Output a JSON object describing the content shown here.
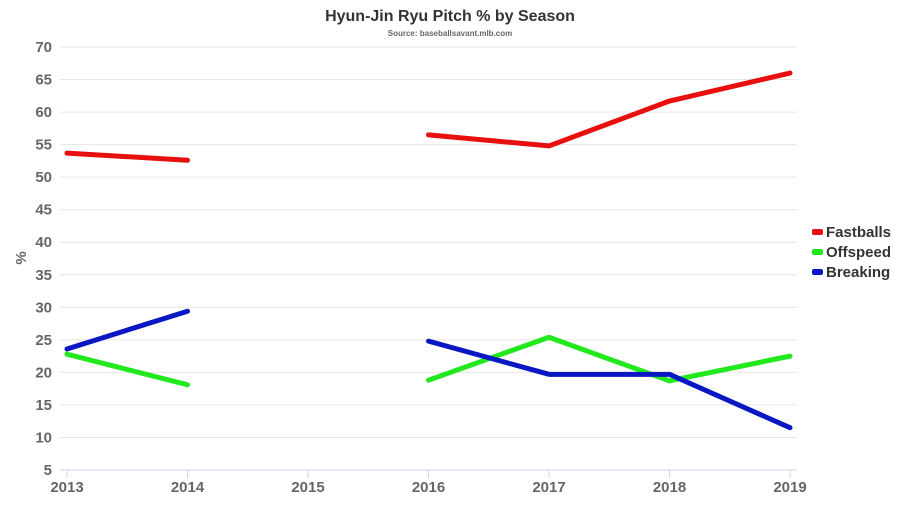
{
  "chart_data": {
    "type": "line",
    "title": "Hyun-Jin Ryu Pitch % by Season",
    "subtitle": "Source: baseballsavant.mlb.com",
    "xlabel": "",
    "ylabel": "%",
    "x": [
      "2013",
      "2014",
      "2015",
      "2016",
      "2017",
      "2018",
      "2019"
    ],
    "ylim": [
      5,
      70
    ],
    "yticks": [
      5,
      10,
      15,
      20,
      25,
      30,
      35,
      40,
      45,
      50,
      55,
      60,
      65,
      70
    ],
    "grid": true,
    "legend": "right",
    "series": [
      {
        "name": "Fastballs",
        "color": "#e8100f",
        "values": [
          53.7,
          52.6,
          null,
          56.5,
          54.8,
          61.7,
          66.0
        ]
      },
      {
        "name": "Offspeed",
        "color": "#22e81d",
        "values": [
          22.8,
          18.1,
          null,
          18.8,
          25.4,
          18.7,
          22.5
        ]
      },
      {
        "name": "Breaking",
        "color": "#0a18c4",
        "values": [
          23.6,
          29.4,
          null,
          24.8,
          19.7,
          19.7,
          11.5
        ]
      }
    ]
  }
}
